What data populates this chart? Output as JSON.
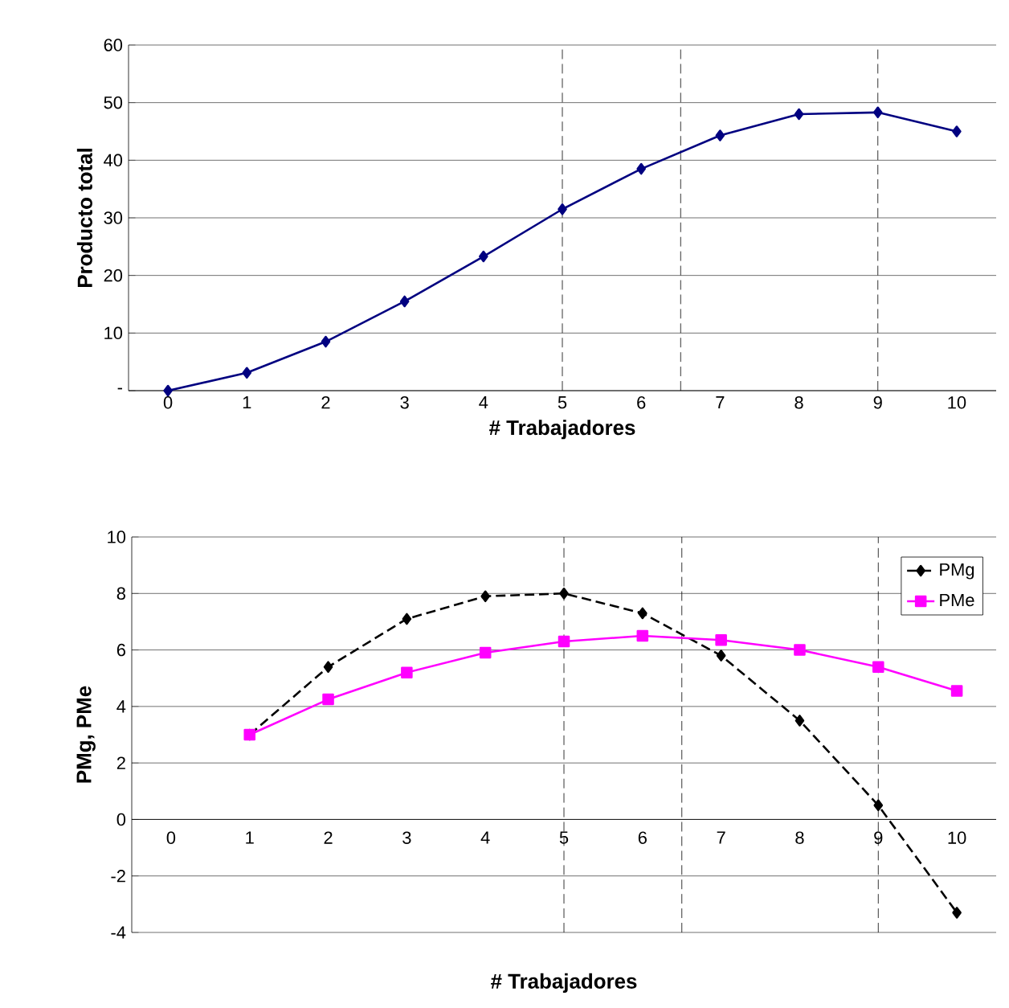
{
  "chart_data": [
    {
      "type": "line",
      "ylabel": "Producto total",
      "xlabel": "# Trabajadores",
      "x": [
        0,
        1,
        2,
        3,
        4,
        5,
        6,
        7,
        8,
        9,
        10
      ],
      "series": [
        {
          "color": "#000080",
          "values": [
            0,
            3.1,
            8.5,
            15.5,
            23.3,
            31.5,
            38.5,
            44.3,
            48.0,
            48.3,
            45.0
          ]
        }
      ],
      "xlim": [
        -0.5,
        10.5
      ],
      "xticks": [
        0,
        1,
        2,
        3,
        4,
        5,
        6,
        7,
        8,
        9,
        10
      ],
      "ylim": [
        0,
        60
      ],
      "yticks": [
        {
          "value": 0,
          "label": "-"
        },
        10,
        20,
        30,
        40,
        50,
        60
      ],
      "grid": "y",
      "marker": "diamond",
      "line_style": "solid",
      "ref_lines": [
        {
          "axis": "x",
          "value": 5,
          "line_style": "dashed"
        },
        {
          "axis": "x",
          "value": 6.5,
          "line_style": "dashed"
        },
        {
          "axis": "x",
          "value": 9,
          "line_style": "dashed"
        }
      ]
    },
    {
      "type": "line",
      "ylabel": "PMg, PMe",
      "xlabel": "# Trabajadores",
      "x": [
        1,
        2,
        3,
        4,
        5,
        6,
        7,
        8,
        9,
        10
      ],
      "series": [
        {
          "name": "PMg",
          "color": "#000000",
          "line_style": "dashed",
          "marker": "diamond",
          "values": [
            3.0,
            5.4,
            7.1,
            7.9,
            8.0,
            7.3,
            5.8,
            3.5,
            0.5,
            -3.3
          ]
        },
        {
          "name": "PMe",
          "color": "#ff00ff",
          "line_style": "solid",
          "marker": "square",
          "values": [
            3.0,
            4.25,
            5.2,
            5.9,
            6.3,
            6.5,
            6.35,
            6.0,
            5.4,
            4.55
          ]
        }
      ],
      "xlim": [
        -0.5,
        10.5
      ],
      "xticks": [
        0,
        1,
        2,
        3,
        4,
        5,
        6,
        7,
        8,
        9,
        10
      ],
      "ylim": [
        -4,
        10
      ],
      "yticks": [
        -4,
        -2,
        0,
        2,
        4,
        6,
        8,
        10
      ],
      "grid": "y",
      "legend": "top right",
      "ref_lines": [
        {
          "axis": "x",
          "value": 5,
          "line_style": "dashed"
        },
        {
          "axis": "x",
          "value": 6.5,
          "line_style": "dashed"
        },
        {
          "axis": "x",
          "value": 9,
          "line_style": "dashed"
        }
      ]
    }
  ]
}
